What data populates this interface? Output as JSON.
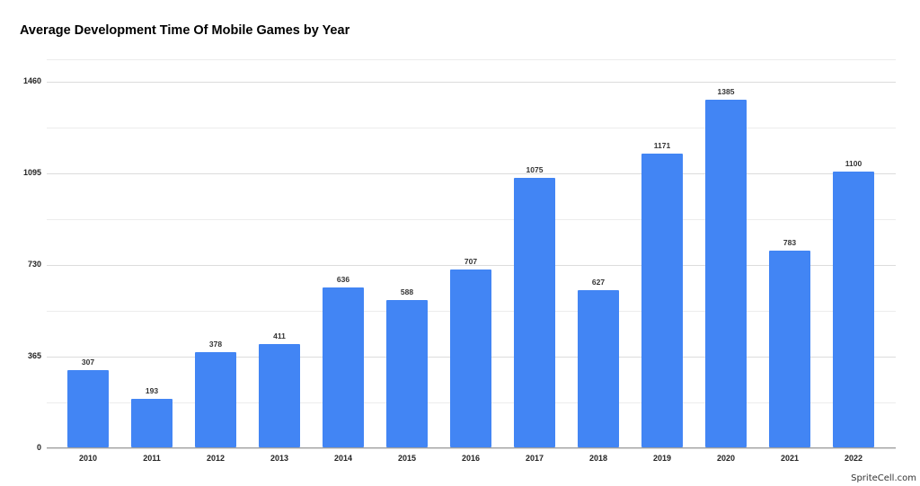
{
  "chart_data": {
    "type": "bar",
    "title": "Average Development Time Of Mobile Games by Year",
    "xlabel": "",
    "ylabel": "",
    "categories": [
      "2010",
      "2011",
      "2012",
      "2013",
      "2014",
      "2015",
      "2016",
      "2017",
      "2018",
      "2019",
      "2020",
      "2021",
      "2022"
    ],
    "values": [
      307,
      193,
      378,
      411,
      636,
      588,
      707,
      1075,
      627,
      1171,
      1385,
      783,
      1100
    ],
    "yticks": [
      0,
      365,
      730,
      1095,
      1460
    ],
    "ylim": [
      0,
      1551
    ],
    "grid": true,
    "legend": null,
    "bar_color": "#4285f4",
    "data_labels": true
  },
  "title": "Average Development Time Of Mobile Games by Year",
  "credit": "SpriteCell.com"
}
